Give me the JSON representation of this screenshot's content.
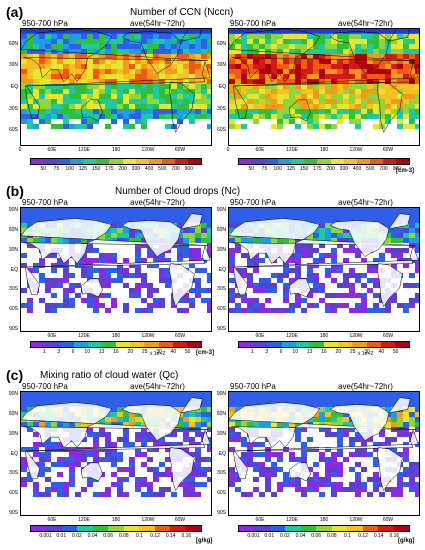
{
  "panels": [
    {
      "letter": "(a)",
      "title": "Number of CCN (Nccn)",
      "level": "950-700 hPa",
      "ave": "ave(54hr~72hr)",
      "lat_labels": [
        "60N",
        "30N",
        "EQ",
        "30S",
        "60S"
      ],
      "lon_labels": [
        "0",
        "60E",
        "120E",
        "180",
        "120W",
        "60W"
      ],
      "cbar_labels": [
        "50",
        "75",
        "100",
        "125",
        "150",
        "175",
        "200",
        "300",
        "400",
        "500",
        "700",
        "900"
      ],
      "unit": "[cm-3]",
      "multiplier": ""
    },
    {
      "letter": "(b)",
      "title": "Number of Cloud drops (Nc)",
      "level": "950-700 hPa",
      "ave": "ave(54hr~72hr)",
      "lat_labels": [
        "90N",
        "60N",
        "30N",
        "EQ",
        "30S",
        "60S",
        "90S"
      ],
      "lon_labels": [
        "60E",
        "120E",
        "180",
        "120W",
        "60W"
      ],
      "cbar_labels": [
        "1",
        "3",
        "6",
        "10",
        "13",
        "16",
        "20",
        "25",
        "30",
        "40",
        "50"
      ],
      "unit": "[cm-3]",
      "multiplier": "x 1e+2"
    },
    {
      "letter": "(c)",
      "title": "Mixing ratio of cloud water (Qc)",
      "level": "950-700 hPa",
      "ave": "ave(54hr~72hr)",
      "lat_labels": [
        "90N",
        "60N",
        "30N",
        "EQ",
        "30S",
        "60S",
        "90S"
      ],
      "lon_labels": [
        "60E",
        "120E",
        "180",
        "120W",
        "60W"
      ],
      "cbar_labels": [
        "0.001",
        "0.01",
        "0.02",
        "0.04",
        "0.06",
        "0.08",
        "0.1",
        "0.12",
        "0.14",
        "0.16"
      ],
      "unit": "[g/kg]",
      "multiplier": ""
    }
  ],
  "colors": {
    "scale": [
      "#8a2be2",
      "#5a3fd0",
      "#2f5fe8",
      "#1aa0e0",
      "#1ec8a0",
      "#2fbf3a",
      "#8fd63a",
      "#e6e632",
      "#f5c220",
      "#f59a18",
      "#ee5a14",
      "#d41a14",
      "#b00010"
    ],
    "top_band": "#1a3fd8",
    "land": "#ffffff",
    "ocean_base": "#6a2bb8"
  }
}
